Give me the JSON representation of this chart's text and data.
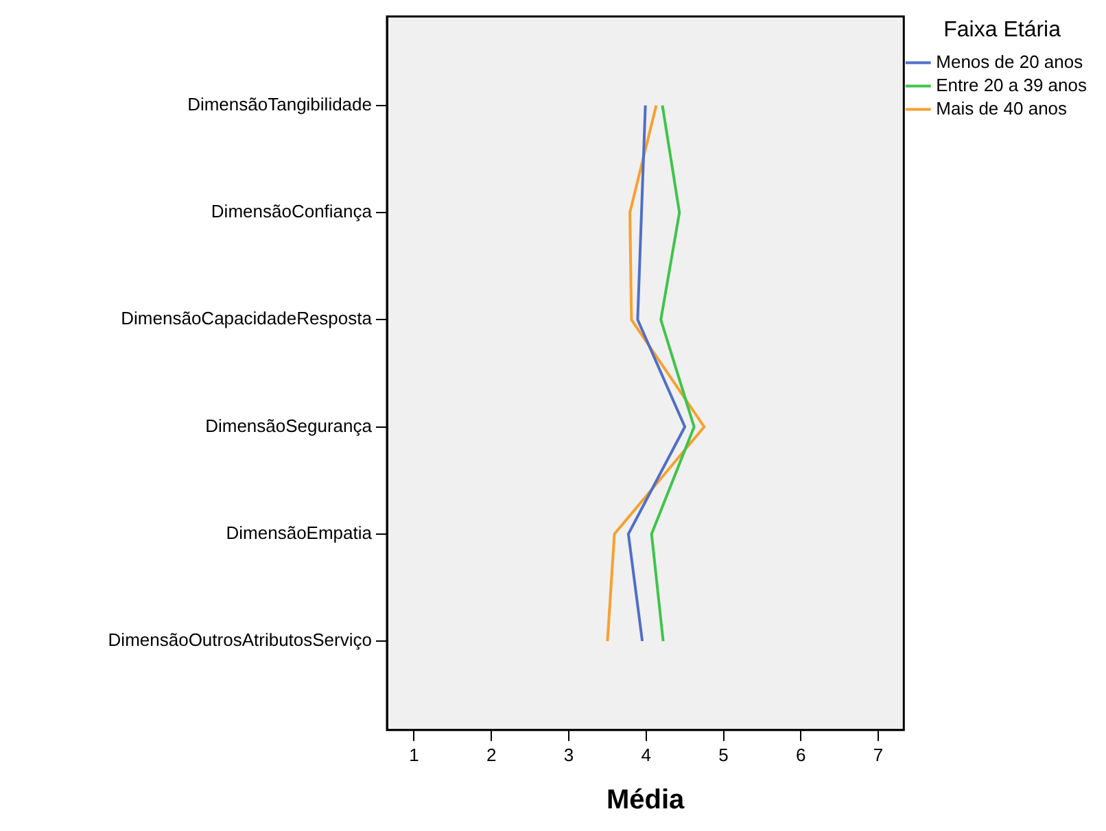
{
  "chart_data": {
    "type": "line",
    "orientation": "horizontal",
    "xlabel": "Média",
    "legend_title": "Faixa Etária",
    "legend": "top right",
    "grid": false,
    "marker": "none",
    "categories": [
      "DimensãoTangibilidade",
      "DimensãoConfiança",
      "DimensãoCapacidadeResposta",
      "DimensãoSegurança",
      "DimensãoEmpatia",
      "DimensãoOutrosAtributosServiço"
    ],
    "xlim": [
      0.65,
      7.33
    ],
    "xticks": [
      1,
      2,
      3,
      4,
      5,
      6,
      7
    ],
    "series": [
      {
        "name": "Menos de 20 anos",
        "color": "#4f6fc6",
        "values": [
          3.99,
          3.94,
          3.89,
          4.5,
          3.77,
          3.95
        ]
      },
      {
        "name": "Entre 20 a 39 anos",
        "color": "#3fc44a",
        "values": [
          4.21,
          4.43,
          4.19,
          4.62,
          4.07,
          4.22
        ]
      },
      {
        "name": "Mais de 40 anos",
        "color": "#f7a030",
        "values": [
          4.13,
          3.79,
          3.81,
          4.75,
          3.59,
          3.5
        ]
      }
    ]
  }
}
